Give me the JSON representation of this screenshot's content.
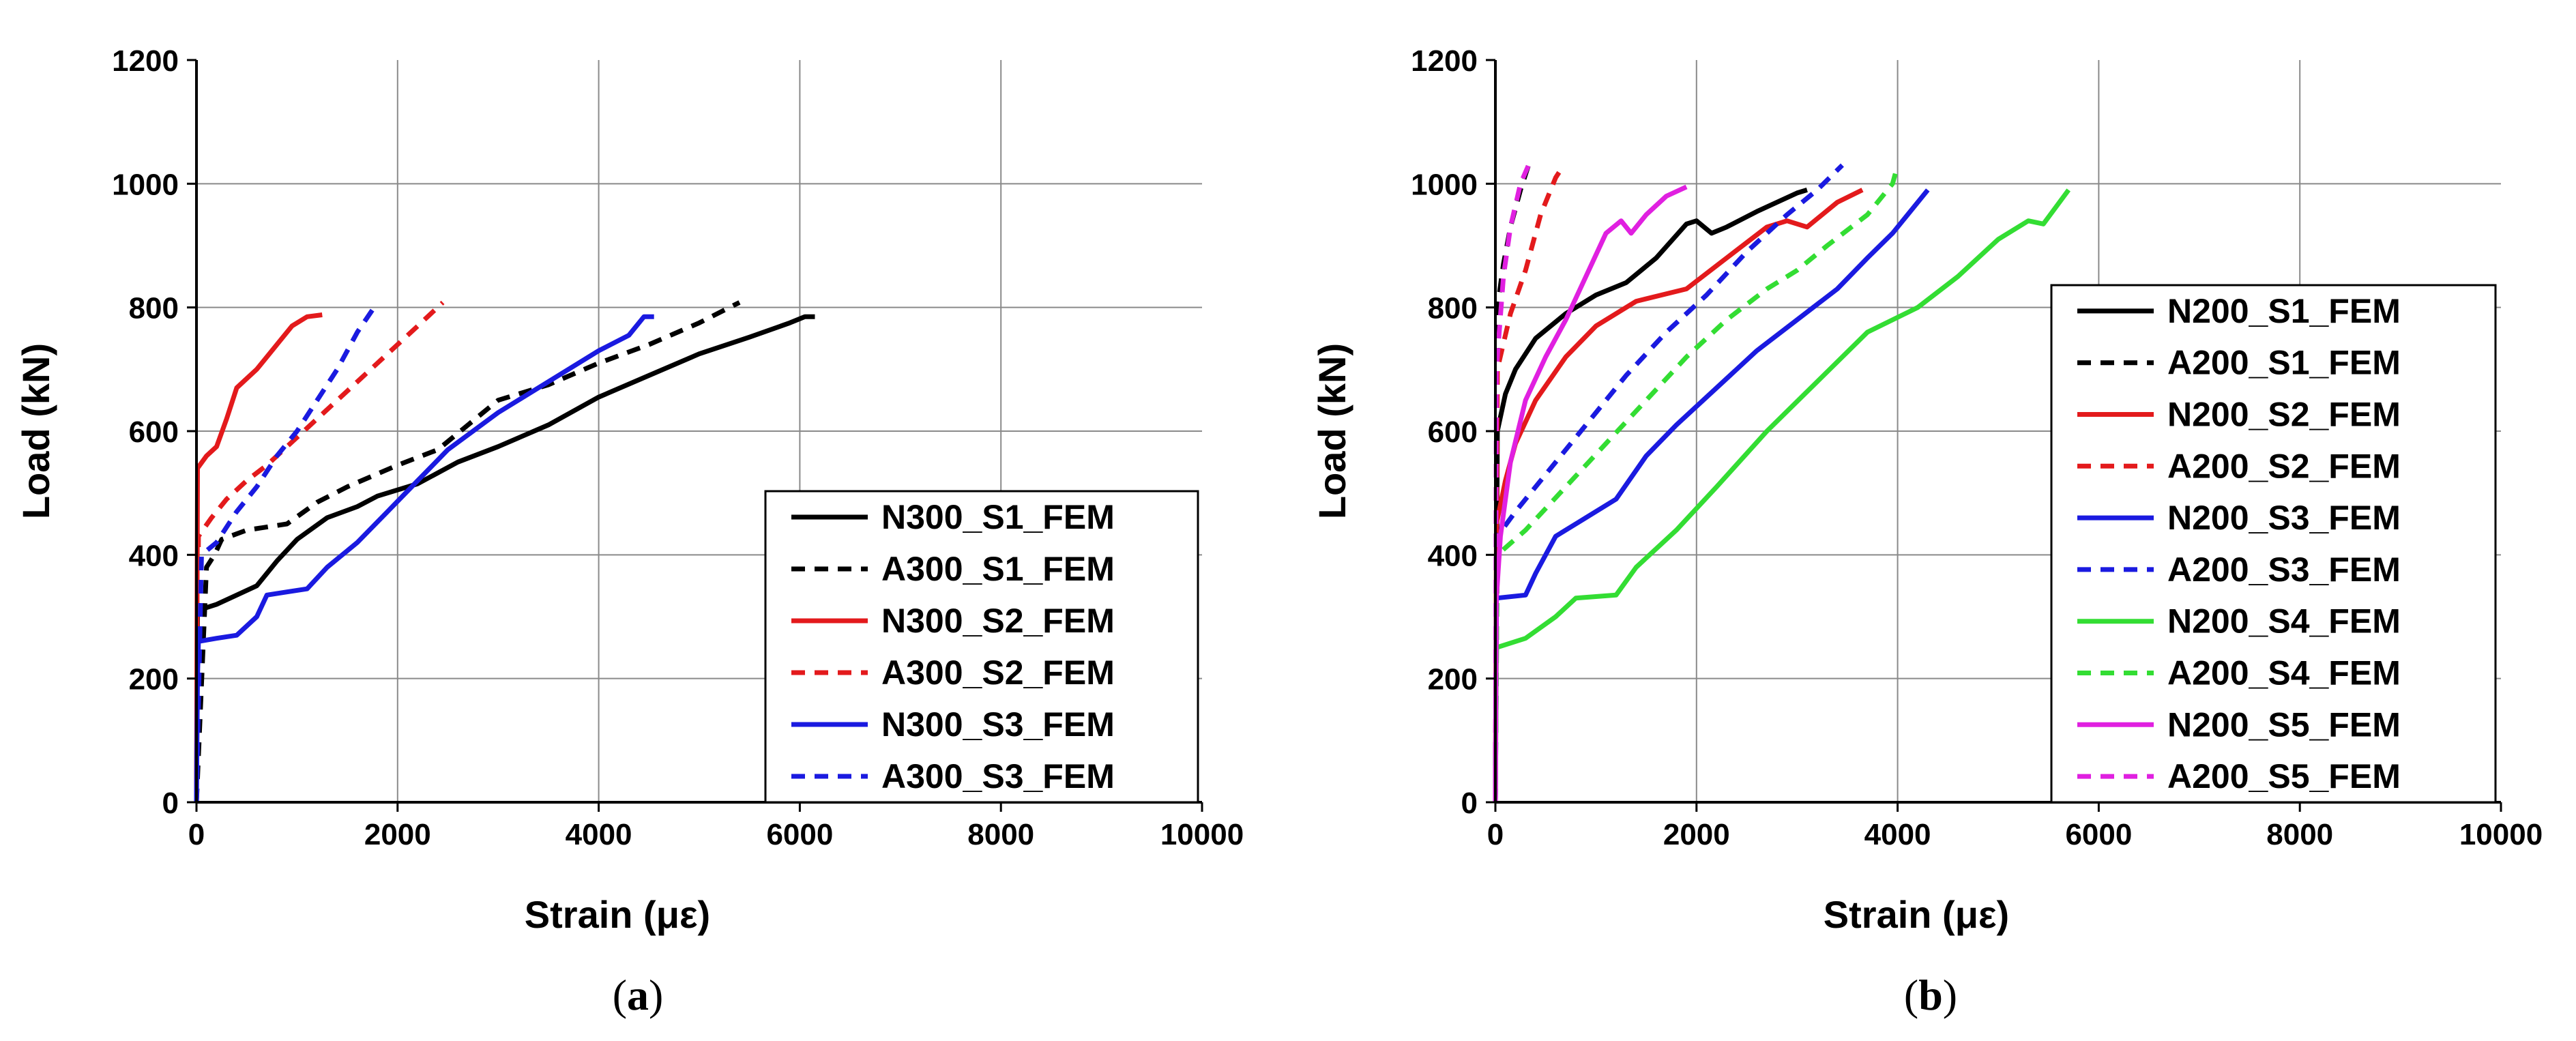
{
  "chart_data": [
    {
      "type": "line",
      "panel_label": "a",
      "xlabel": "Strain (με)",
      "ylabel": "Load (kN)",
      "xlim": [
        0,
        10000
      ],
      "ylim": [
        0,
        1200
      ],
      "xticks": [
        0,
        2000,
        4000,
        6000,
        8000,
        10000
      ],
      "yticks": [
        0,
        200,
        400,
        600,
        800,
        1000,
        1200
      ],
      "grid": true,
      "legend_position": "bottom-right",
      "series": [
        {
          "name": "N300_S1_FEM",
          "color": "#000000",
          "dash": "solid",
          "points": [
            [
              0,
              0
            ],
            [
              10,
              310
            ],
            [
              200,
              320
            ],
            [
              400,
              335
            ],
            [
              600,
              350
            ],
            [
              800,
              390
            ],
            [
              1000,
              425
            ],
            [
              1300,
              460
            ],
            [
              1600,
              478
            ],
            [
              1800,
              495
            ],
            [
              2200,
              515
            ],
            [
              2600,
              550
            ],
            [
              3000,
              575
            ],
            [
              3500,
              610
            ],
            [
              4000,
              655
            ],
            [
              4500,
              690
            ],
            [
              5000,
              725
            ],
            [
              5500,
              752
            ],
            [
              5900,
              775
            ],
            [
              6050,
              785
            ],
            [
              6150,
              785
            ]
          ]
        },
        {
          "name": "A300_S1_FEM",
          "color": "#000000",
          "dash": "dash",
          "points": [
            [
              0,
              0
            ],
            [
              100,
              380
            ],
            [
              180,
              400
            ],
            [
              250,
              425
            ],
            [
              500,
              440
            ],
            [
              900,
              450
            ],
            [
              1200,
              485
            ],
            [
              1500,
              510
            ],
            [
              2000,
              545
            ],
            [
              2400,
              570
            ],
            [
              2700,
              610
            ],
            [
              3000,
              650
            ],
            [
              3500,
              675
            ],
            [
              4000,
              710
            ],
            [
              4500,
              740
            ],
            [
              5000,
              775
            ],
            [
              5300,
              800
            ],
            [
              5400,
              808
            ]
          ]
        },
        {
          "name": "N300_S2_FEM",
          "color": "#e31a1c",
          "dash": "solid",
          "points": [
            [
              0,
              0
            ],
            [
              10,
              540
            ],
            [
              100,
              560
            ],
            [
              200,
              575
            ],
            [
              300,
              620
            ],
            [
              400,
              670
            ],
            [
              600,
              700
            ],
            [
              800,
              740
            ],
            [
              950,
              770
            ],
            [
              1100,
              785
            ],
            [
              1250,
              788
            ]
          ]
        },
        {
          "name": "A300_S2_FEM",
          "color": "#e31a1c",
          "dash": "dash",
          "points": [
            [
              0,
              0
            ],
            [
              20,
              430
            ],
            [
              150,
              460
            ],
            [
              300,
              490
            ],
            [
              500,
              520
            ],
            [
              700,
              545
            ],
            [
              1000,
              590
            ],
            [
              1400,
              650
            ],
            [
              1800,
              710
            ],
            [
              2200,
              770
            ],
            [
              2450,
              808
            ]
          ]
        },
        {
          "name": "N300_S3_FEM",
          "color": "#1a1ae0",
          "dash": "solid",
          "points": [
            [
              0,
              0
            ],
            [
              10,
              200
            ],
            [
              20,
              260
            ],
            [
              200,
              265
            ],
            [
              400,
              270
            ],
            [
              600,
              300
            ],
            [
              700,
              335
            ],
            [
              900,
              340
            ],
            [
              1100,
              345
            ],
            [
              1300,
              380
            ],
            [
              1600,
              420
            ],
            [
              1900,
              470
            ],
            [
              2200,
              520
            ],
            [
              2500,
              570
            ],
            [
              3000,
              630
            ],
            [
              3500,
              680
            ],
            [
              4000,
              730
            ],
            [
              4300,
              755
            ],
            [
              4450,
              785
            ],
            [
              4550,
              785
            ]
          ]
        },
        {
          "name": "A300_S3_FEM",
          "color": "#1a1ae0",
          "dash": "dash",
          "points": [
            [
              0,
              0
            ],
            [
              50,
              400
            ],
            [
              200,
              420
            ],
            [
              400,
              470
            ],
            [
              600,
              510
            ],
            [
              800,
              560
            ],
            [
              1000,
              600
            ],
            [
              1200,
              650
            ],
            [
              1400,
              700
            ],
            [
              1600,
              760
            ],
            [
              1800,
              808
            ]
          ]
        }
      ]
    },
    {
      "type": "line",
      "panel_label": "b",
      "xlabel": "Strain (με)",
      "ylabel": "Load (kN)",
      "xlim": [
        0,
        10000
      ],
      "ylim": [
        0,
        1200
      ],
      "xticks": [
        0,
        2000,
        4000,
        6000,
        8000,
        10000
      ],
      "yticks": [
        0,
        200,
        400,
        600,
        800,
        1000,
        1200
      ],
      "grid": true,
      "legend_position": "right",
      "series": [
        {
          "name": "N200_S1_FEM",
          "color": "#000000",
          "dash": "solid",
          "points": [
            [
              0,
              0
            ],
            [
              20,
              600
            ],
            [
              100,
              660
            ],
            [
              200,
              700
            ],
            [
              400,
              750
            ],
            [
              700,
              790
            ],
            [
              1000,
              820
            ],
            [
              1300,
              840
            ],
            [
              1600,
              880
            ],
            [
              1900,
              935
            ],
            [
              2000,
              940
            ],
            [
              2150,
              920
            ],
            [
              2300,
              930
            ],
            [
              2600,
              955
            ],
            [
              3000,
              985
            ],
            [
              3100,
              990
            ]
          ]
        },
        {
          "name": "A200_S1_FEM",
          "color": "#000000",
          "dash": "dash",
          "points": [
            [
              0,
              0
            ],
            [
              20,
              800
            ],
            [
              80,
              870
            ],
            [
              150,
              930
            ],
            [
              250,
              990
            ],
            [
              330,
              1030
            ]
          ]
        },
        {
          "name": "N200_S2_FEM",
          "color": "#e31a1c",
          "dash": "solid",
          "points": [
            [
              0,
              0
            ],
            [
              10,
              450
            ],
            [
              100,
              520
            ],
            [
              200,
              580
            ],
            [
              400,
              650
            ],
            [
              700,
              720
            ],
            [
              1000,
              770
            ],
            [
              1400,
              810
            ],
            [
              1900,
              830
            ],
            [
              2300,
              880
            ],
            [
              2700,
              930
            ],
            [
              2900,
              940
            ],
            [
              3100,
              930
            ],
            [
              3400,
              970
            ],
            [
              3650,
              990
            ]
          ]
        },
        {
          "name": "A200_S2_FEM",
          "color": "#e31a1c",
          "dash": "dash",
          "points": [
            [
              0,
              0
            ],
            [
              20,
              700
            ],
            [
              150,
              790
            ],
            [
              300,
              860
            ],
            [
              450,
              950
            ],
            [
              600,
              1010
            ],
            [
              680,
              1030
            ]
          ]
        },
        {
          "name": "N200_S3_FEM",
          "color": "#1a1ae0",
          "dash": "solid",
          "points": [
            [
              0,
              0
            ],
            [
              10,
              330
            ],
            [
              300,
              335
            ],
            [
              400,
              370
            ],
            [
              600,
              430
            ],
            [
              900,
              460
            ],
            [
              1200,
              490
            ],
            [
              1500,
              560
            ],
            [
              1800,
              610
            ],
            [
              2200,
              670
            ],
            [
              2600,
              730
            ],
            [
              3000,
              780
            ],
            [
              3400,
              830
            ],
            [
              3700,
              880
            ],
            [
              3950,
              920
            ],
            [
              4050,
              940
            ],
            [
              4300,
              990
            ]
          ]
        },
        {
          "name": "A200_S3_FEM",
          "color": "#1a1ae0",
          "dash": "dash",
          "points": [
            [
              0,
              0
            ],
            [
              20,
              430
            ],
            [
              200,
              470
            ],
            [
              500,
              530
            ],
            [
              900,
              610
            ],
            [
              1300,
              690
            ],
            [
              1700,
              760
            ],
            [
              2100,
              820
            ],
            [
              2500,
              890
            ],
            [
              2900,
              950
            ],
            [
              3200,
              990
            ],
            [
              3450,
              1030
            ]
          ]
        },
        {
          "name": "N200_S4_FEM",
          "color": "#33dd33",
          "dash": "solid",
          "points": [
            [
              0,
              0
            ],
            [
              10,
              250
            ],
            [
              300,
              265
            ],
            [
              600,
              300
            ],
            [
              800,
              330
            ],
            [
              1200,
              335
            ],
            [
              1400,
              380
            ],
            [
              1800,
              440
            ],
            [
              2200,
              510
            ],
            [
              2700,
              600
            ],
            [
              3200,
              680
            ],
            [
              3700,
              760
            ],
            [
              4200,
              800
            ],
            [
              4600,
              850
            ],
            [
              5000,
              910
            ],
            [
              5300,
              940
            ],
            [
              5450,
              935
            ],
            [
              5700,
              990
            ]
          ]
        },
        {
          "name": "A200_S4_FEM",
          "color": "#33dd33",
          "dash": "dash",
          "points": [
            [
              0,
              0
            ],
            [
              20,
              400
            ],
            [
              300,
              440
            ],
            [
              700,
              510
            ],
            [
              1100,
              580
            ],
            [
              1500,
              650
            ],
            [
              1900,
              720
            ],
            [
              2300,
              780
            ],
            [
              2700,
              830
            ],
            [
              3000,
              860
            ],
            [
              3300,
              900
            ],
            [
              3700,
              950
            ],
            [
              3950,
              1000
            ],
            [
              4000,
              1030
            ]
          ]
        },
        {
          "name": "N200_S5_FEM",
          "color": "#e020e0",
          "dash": "solid",
          "points": [
            [
              0,
              0
            ],
            [
              10,
              330
            ],
            [
              50,
              430
            ],
            [
              150,
              550
            ],
            [
              300,
              650
            ],
            [
              500,
              720
            ],
            [
              700,
              780
            ],
            [
              900,
              850
            ],
            [
              1100,
              920
            ],
            [
              1250,
              940
            ],
            [
              1350,
              920
            ],
            [
              1500,
              950
            ],
            [
              1700,
              980
            ],
            [
              1900,
              995
            ]
          ]
        },
        {
          "name": "A200_S5_FEM",
          "color": "#e020e0",
          "dash": "dash",
          "points": [
            [
              0,
              0
            ],
            [
              10,
              700
            ],
            [
              80,
              850
            ],
            [
              150,
              930
            ],
            [
              250,
              1000
            ],
            [
              330,
              1030
            ]
          ]
        }
      ]
    }
  ]
}
